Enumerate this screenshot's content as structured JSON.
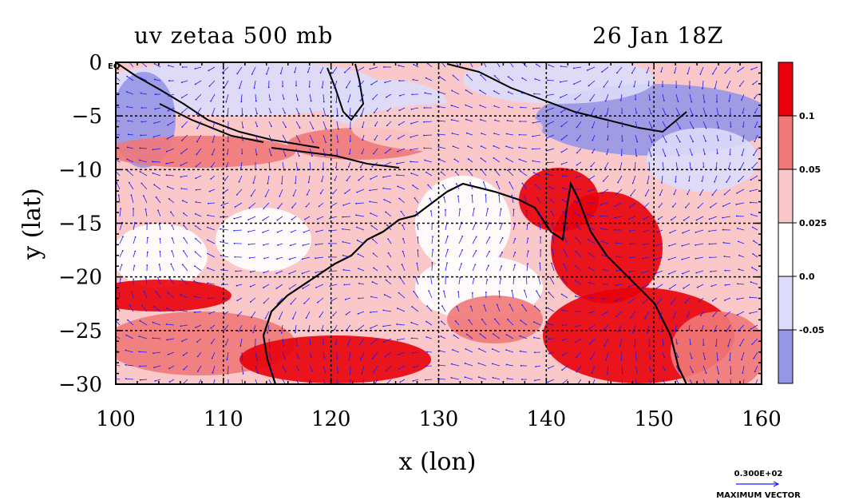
{
  "title": {
    "left": "uv zetaa 500 mb",
    "right": "26 Jan 18Z"
  },
  "axes": {
    "xlabel": "x (lon)",
    "ylabel": "y (lat)",
    "x_ticks": [
      "100",
      "110",
      "120",
      "130",
      "140",
      "150",
      "160"
    ],
    "y_ticks": [
      "0",
      "−5",
      "−10",
      "−15",
      "−20",
      "−25",
      "−30"
    ],
    "eq_label": "EQ",
    "xlim": [
      100,
      160
    ],
    "ylim": [
      -30,
      0
    ],
    "grid": true
  },
  "colorbar": {
    "labels": [
      "0.1",
      "0.05",
      "0.025",
      "0.0",
      "-0.05"
    ],
    "colors": [
      "#e8000a",
      "#f07878",
      "#fac8c8",
      "#ffffff",
      "#dcdcfa",
      "#9696e6"
    ]
  },
  "vector_key": {
    "value": "0.300E+02",
    "label": "MAXIMUM VECTOR"
  },
  "colors": {
    "coast": "#000000",
    "vectors": "#1a1aff",
    "contour_red": "#e8000a"
  },
  "chart_data": {
    "type": "heatmap",
    "title": "uv zetaa 500 mb",
    "xlabel": "x (lon)",
    "ylabel": "y (lat)",
    "xlim": [
      100,
      160
    ],
    "ylim": [
      -30,
      0
    ],
    "levels": [
      -0.05,
      0.0,
      0.025,
      0.05,
      0.1
    ]
  }
}
